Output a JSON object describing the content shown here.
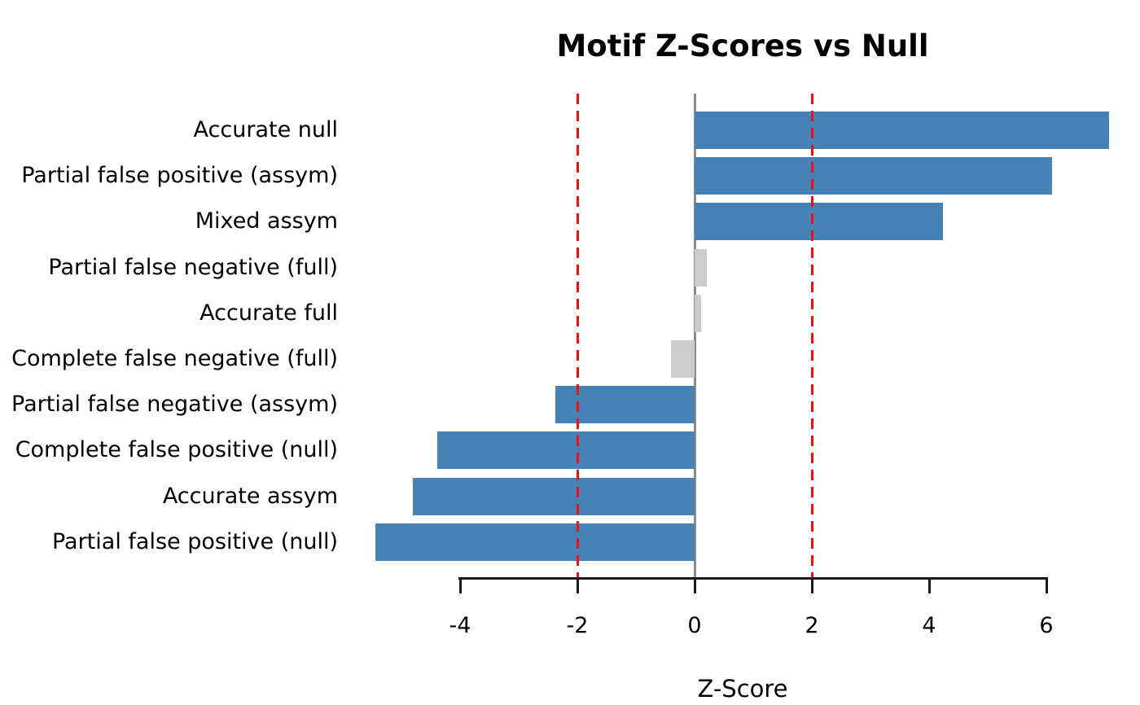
{
  "chart_data": {
    "type": "bar",
    "orientation": "horizontal",
    "title": "Motif Z-Scores vs Null",
    "xlabel": "Z-Score",
    "categories": [
      "Accurate null",
      "Partial false positive (assym)",
      "Mixed assym",
      "Partial false negative (full)",
      "Accurate full",
      "Complete false negative (full)",
      "Partial false negative (assym)",
      "Complete false positive (null)",
      "Accurate assym",
      "Partial false positive (null)"
    ],
    "values": [
      7.07,
      6.1,
      4.24,
      0.21,
      0.11,
      -0.4,
      -2.38,
      -4.39,
      -4.81,
      -5.44
    ],
    "bar_colors": [
      "#4682b4",
      "#4682b4",
      "#4682b4",
      "#cccccc",
      "#cccccc",
      "#cccccc",
      "#4682b4",
      "#4682b4",
      "#4682b4",
      "#4682b4"
    ],
    "significance_threshold": 2,
    "xticks": [
      -4,
      -2,
      0,
      2,
      4,
      6
    ],
    "xtick_labels": [
      "-4",
      "-2",
      "0",
      "2",
      "4",
      "6"
    ],
    "xlim": [
      -5.7,
      7.6
    ],
    "grid": false,
    "legend": null,
    "reference_lines": [
      {
        "x": 0,
        "style": "solid",
        "color": "#8c8c8c",
        "name": "zero-line"
      },
      {
        "x": -2,
        "style": "dashed",
        "color": "#ee1111",
        "name": "threshold-line-neg"
      },
      {
        "x": 2,
        "style": "dashed",
        "color": "#ee1111",
        "name": "threshold-line-pos"
      }
    ],
    "colors": {
      "significant_bar": "#4682b4",
      "nonsignificant_bar": "#cccccc",
      "threshold_line": "#ee1111",
      "zero_line": "#8c8c8c",
      "axis": "#1a1a1a",
      "background": "#ffffff"
    }
  }
}
